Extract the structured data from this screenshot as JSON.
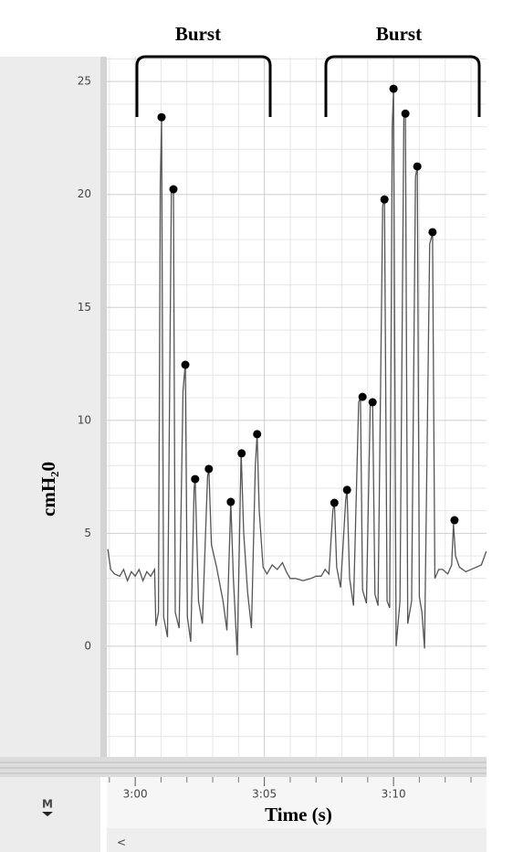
{
  "chart_data": {
    "type": "line",
    "annotations": [
      "Burst",
      "Burst"
    ],
    "ylabel": "cmH₂0",
    "xlabel": "Time (s)",
    "xlim": [
      178.9,
      193.6
    ],
    "ylim": [
      -4.9,
      26.1
    ],
    "xticks": [
      {
        "value": 180,
        "label": "3:00"
      },
      {
        "value": 185,
        "label": "3:05"
      },
      {
        "value": 190,
        "label": "3:10"
      }
    ],
    "yticks": [
      0,
      5,
      10,
      15,
      20,
      25
    ],
    "xminorticks": [
      179,
      181,
      182,
      183,
      184,
      186,
      187,
      188,
      189,
      191,
      192,
      193
    ],
    "yminorticks": [
      -4,
      -3,
      -2,
      -1,
      1,
      2,
      3,
      4,
      6,
      7,
      8,
      9,
      11,
      12,
      13,
      14,
      16,
      17,
      18,
      19,
      21,
      22,
      23,
      24,
      26
    ],
    "grid": true,
    "color": "#555555",
    "x": [
      178.94,
      179.05,
      179.2,
      179.4,
      179.55,
      179.7,
      179.85,
      180.0,
      180.15,
      180.3,
      180.45,
      180.6,
      180.75,
      180.8,
      180.9,
      180.97,
      181.02,
      181.1,
      181.25,
      181.4,
      181.48,
      181.55,
      181.7,
      181.85,
      181.94,
      182.02,
      182.15,
      182.28,
      182.32,
      182.45,
      182.6,
      182.8,
      182.85,
      182.95,
      183.15,
      183.4,
      183.55,
      183.7,
      183.8,
      183.95,
      184.1,
      184.2,
      184.35,
      184.5,
      184.65,
      184.72,
      184.8,
      184.95,
      185.1,
      185.3,
      185.5,
      185.7,
      185.85,
      186.0,
      186.2,
      186.5,
      186.8,
      187.0,
      187.2,
      187.35,
      187.5,
      187.65,
      187.71,
      187.8,
      187.95,
      188.15,
      188.2,
      188.3,
      188.45,
      188.65,
      188.72,
      188.8,
      188.95,
      189.1,
      189.19,
      189.28,
      189.4,
      189.58,
      189.65,
      189.75,
      189.85,
      189.95,
      190.0,
      190.1,
      190.25,
      190.4,
      190.46,
      190.55,
      190.7,
      190.85,
      190.92,
      191.0,
      191.1,
      191.2,
      191.4,
      191.51,
      191.6,
      191.75,
      191.9,
      192.1,
      192.25,
      192.32,
      192.4,
      192.55,
      192.8,
      193.0,
      193.2,
      193.4,
      193.59
    ],
    "values": [
      4.3,
      3.4,
      3.2,
      3.1,
      3.4,
      2.9,
      3.3,
      3.1,
      3.4,
      2.9,
      3.3,
      3.1,
      3.4,
      0.9,
      1.5,
      20.4,
      23.4,
      1.3,
      0.4,
      20.2,
      20.3,
      1.5,
      0.8,
      11.3,
      12.5,
      1.3,
      0.2,
      7.0,
      7.4,
      2.0,
      1.0,
      7.5,
      7.9,
      4.5,
      3.5,
      2.0,
      0.7,
      6.4,
      3.0,
      -0.4,
      8.6,
      5.0,
      2.4,
      0.8,
      8.0,
      9.4,
      6.0,
      3.5,
      3.2,
      3.6,
      3.4,
      3.7,
      3.3,
      3.0,
      3.0,
      2.9,
      3.0,
      3.1,
      3.1,
      3.4,
      3.2,
      6.0,
      6.4,
      3.5,
      2.6,
      6.5,
      6.9,
      3.0,
      1.8,
      10.8,
      11.0,
      2.5,
      1.9,
      10.8,
      10.8,
      2.3,
      1.8,
      19.5,
      19.8,
      2.0,
      1.7,
      23.0,
      24.7,
      0.0,
      2.0,
      23.5,
      23.6,
      1.0,
      2.0,
      20.8,
      21.2,
      2.2,
      1.5,
      -0.1,
      17.8,
      18.3,
      3.0,
      3.4,
      3.4,
      3.2,
      3.6,
      5.4,
      4.0,
      3.5,
      3.3,
      3.4,
      3.5,
      3.6,
      4.2
    ],
    "markers": {
      "color": "#000000",
      "x": [
        181.02,
        181.48,
        181.94,
        182.32,
        182.85,
        183.7,
        184.12,
        184.72,
        187.71,
        188.2,
        188.8,
        189.19,
        189.65,
        190.0,
        190.46,
        190.92,
        191.51,
        192.36
      ],
      "values": [
        23.42,
        20.23,
        12.46,
        7.4,
        7.85,
        6.39,
        8.54,
        9.39,
        6.35,
        6.92,
        11.04,
        10.8,
        19.78,
        24.68,
        23.58,
        21.24,
        18.33,
        5.58
      ]
    }
  },
  "ui": {
    "marker_button": "M",
    "scroll_left": "<"
  }
}
